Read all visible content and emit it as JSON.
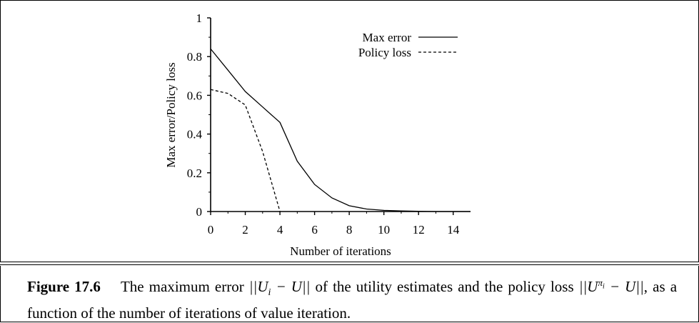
{
  "chart_data": {
    "type": "line",
    "xlabel": "Number of iterations",
    "ylabel": "Max error/Policy loss",
    "xlim": [
      0,
      15
    ],
    "ylim": [
      0,
      1
    ],
    "x_ticks": [
      "0",
      "2",
      "4",
      "6",
      "8",
      "10",
      "12",
      "14"
    ],
    "y_ticks": [
      "0",
      "0.2",
      "0.4",
      "0.6",
      "0.8",
      "1"
    ],
    "legend_position": "top-right",
    "series": [
      {
        "name": "Max error",
        "style": "solid",
        "x": [
          0,
          1,
          2,
          3,
          4,
          5,
          6,
          7,
          8,
          9,
          10,
          11,
          12,
          13,
          14,
          15
        ],
        "y": [
          0.84,
          0.73,
          0.62,
          0.54,
          0.46,
          0.26,
          0.14,
          0.07,
          0.03,
          0.013,
          0.006,
          0.003,
          0.001,
          0.0,
          0.0,
          0.0
        ]
      },
      {
        "name": "Policy loss",
        "style": "dashed",
        "x": [
          0,
          1,
          2,
          3,
          4
        ],
        "y": [
          0.63,
          0.61,
          0.55,
          0.31,
          0.0
        ]
      }
    ]
  },
  "caption": {
    "label": "Figure 17.6",
    "text_part1": "The maximum error ",
    "math1": "||Uᵢ − U||",
    "text_part2": " of the utility estimates and the policy loss ",
    "math2": "||U^{πᵢ} − U||",
    "text_part3": ", as a function of the number of iterations of value iteration."
  }
}
